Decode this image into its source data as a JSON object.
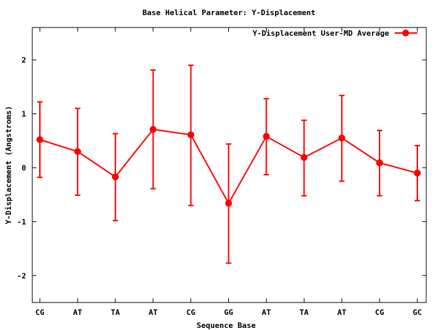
{
  "chart_data": {
    "type": "line",
    "title": "Base  Helical Parameter: Y-Displacement",
    "xlabel": "Sequence Base",
    "ylabel": "Y-Displacement (Angstroms)",
    "categories": [
      "CG",
      "AT",
      "TA",
      "AT",
      "CG",
      "GG",
      "AT",
      "TA",
      "AT",
      "CG",
      "GC"
    ],
    "ylim": [
      -2.5,
      2.6
    ],
    "yticks": [
      -2,
      -1,
      0,
      1,
      2
    ],
    "ytick_labels": [
      "-2",
      "-1",
      "0",
      "1",
      "2"
    ],
    "grid": false,
    "legend_position": "top-right",
    "series": [
      {
        "name": "Y-Displacement User-MD Average",
        "color": "#ff0000",
        "values": [
          0.52,
          0.3,
          -0.17,
          0.71,
          0.61,
          -0.66,
          0.58,
          0.19,
          0.55,
          0.09,
          -0.1
        ],
        "error_low": [
          -0.18,
          -0.51,
          -0.98,
          -0.39,
          -0.7,
          -1.77,
          -0.13,
          -0.52,
          -0.25,
          -0.52,
          -0.61
        ],
        "error_high": [
          1.22,
          1.1,
          0.63,
          1.81,
          1.9,
          0.44,
          1.28,
          0.88,
          1.34,
          0.69,
          0.41
        ]
      }
    ]
  }
}
